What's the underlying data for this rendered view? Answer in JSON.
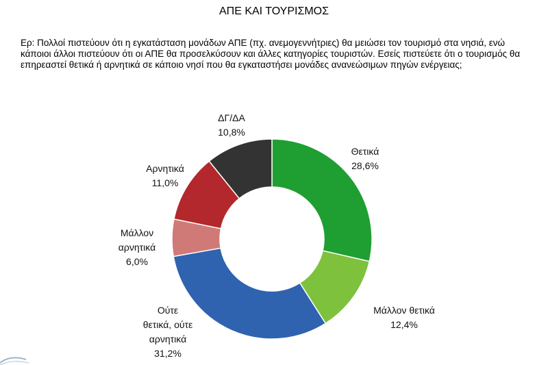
{
  "title": "ΑΠΕ ΚΑΙ ΤΟΥΡΙΣΜΟΣ",
  "question": "Ερ: Πολλοί πιστεύουν ότι η εγκατάσταση μονάδων ΑΠΕ (πχ. ανεμογεννήτριες) θα μειώσει τον τουρισμό στα νησιά, ενώ κάποιοι άλλοι πιστεύουν ότι οι ΑΠΕ θα προσελκύσουν και άλλες κατηγορίες τουριστών. Εσείς πιστεύετε ότι ο τουρισμός θα επηρεαστεί θετικά ή αρνητικά σε κάποιο νησί που θα εγκαταστήσει μονάδες ανανεώσιμων πηγών ενέργειας;",
  "chart_data": {
    "type": "pie",
    "donut": true,
    "slices": [
      {
        "label": "Θετικά",
        "value": 28.6,
        "value_label": "28,6%",
        "color": "#1f9e32"
      },
      {
        "label": "Μάλλον θετικά",
        "value": 12.4,
        "value_label": "12,4%",
        "color": "#7dc13d"
      },
      {
        "label": "Ούτε θετικά, ούτε αρνητικά",
        "value": 31.2,
        "value_label": "31,2%",
        "color": "#2f63b0"
      },
      {
        "label": "Μάλλον αρνητικά",
        "value": 6.0,
        "value_label": "6,0%",
        "color": "#d07a78"
      },
      {
        "label": "Αρνητικά",
        "value": 11.0,
        "value_label": "11,0%",
        "color": "#b3282c"
      },
      {
        "label": "ΔΓ/ΔΑ",
        "value": 10.8,
        "value_label": "10,8%",
        "color": "#333333"
      }
    ]
  }
}
